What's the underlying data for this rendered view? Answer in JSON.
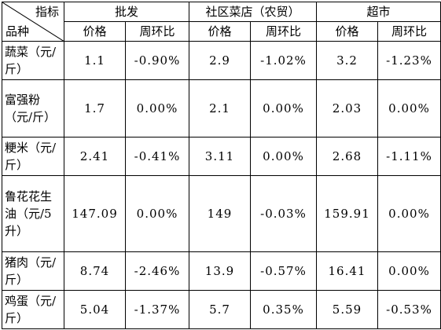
{
  "header": {
    "corner_top": "指标",
    "corner_bottom": "品种",
    "groups": [
      "批发",
      "社区菜店（农贸）",
      "超市"
    ],
    "sub_labels": [
      "价格",
      "周环比",
      "价格",
      "周环比",
      "价格",
      "周环比"
    ]
  },
  "rows": [
    {
      "name": "蔬菜（元/斤）",
      "values": [
        "1.1",
        "-0.90%",
        "2.9",
        "-1.02%",
        "3.2",
        "-1.23%"
      ]
    },
    {
      "name": "富强粉（元/斤）",
      "values": [
        "1.7",
        "0.00%",
        "2.1",
        "0.00%",
        "2.03",
        "0.00%"
      ]
    },
    {
      "name": "粳米（元/斤）",
      "values": [
        "2.41",
        "-0.41%",
        "3.11",
        "0.00%",
        "2.68",
        "-1.11%"
      ]
    },
    {
      "name": "鲁花花生油（元/5升）",
      "values": [
        "147.09",
        "0.00%",
        "149",
        "-0.03%",
        "159.91",
        "0.00%"
      ]
    },
    {
      "name": "猪肉（元/斤）",
      "values": [
        "8.74",
        "-2.46%",
        "13.9",
        "-0.57%",
        "16.41",
        "0.00%"
      ]
    },
    {
      "name": "鸡蛋（元/斤）",
      "values": [
        "5.04",
        "-1.37%",
        "5.7",
        "0.35%",
        "5.59",
        "-0.53%"
      ]
    }
  ]
}
